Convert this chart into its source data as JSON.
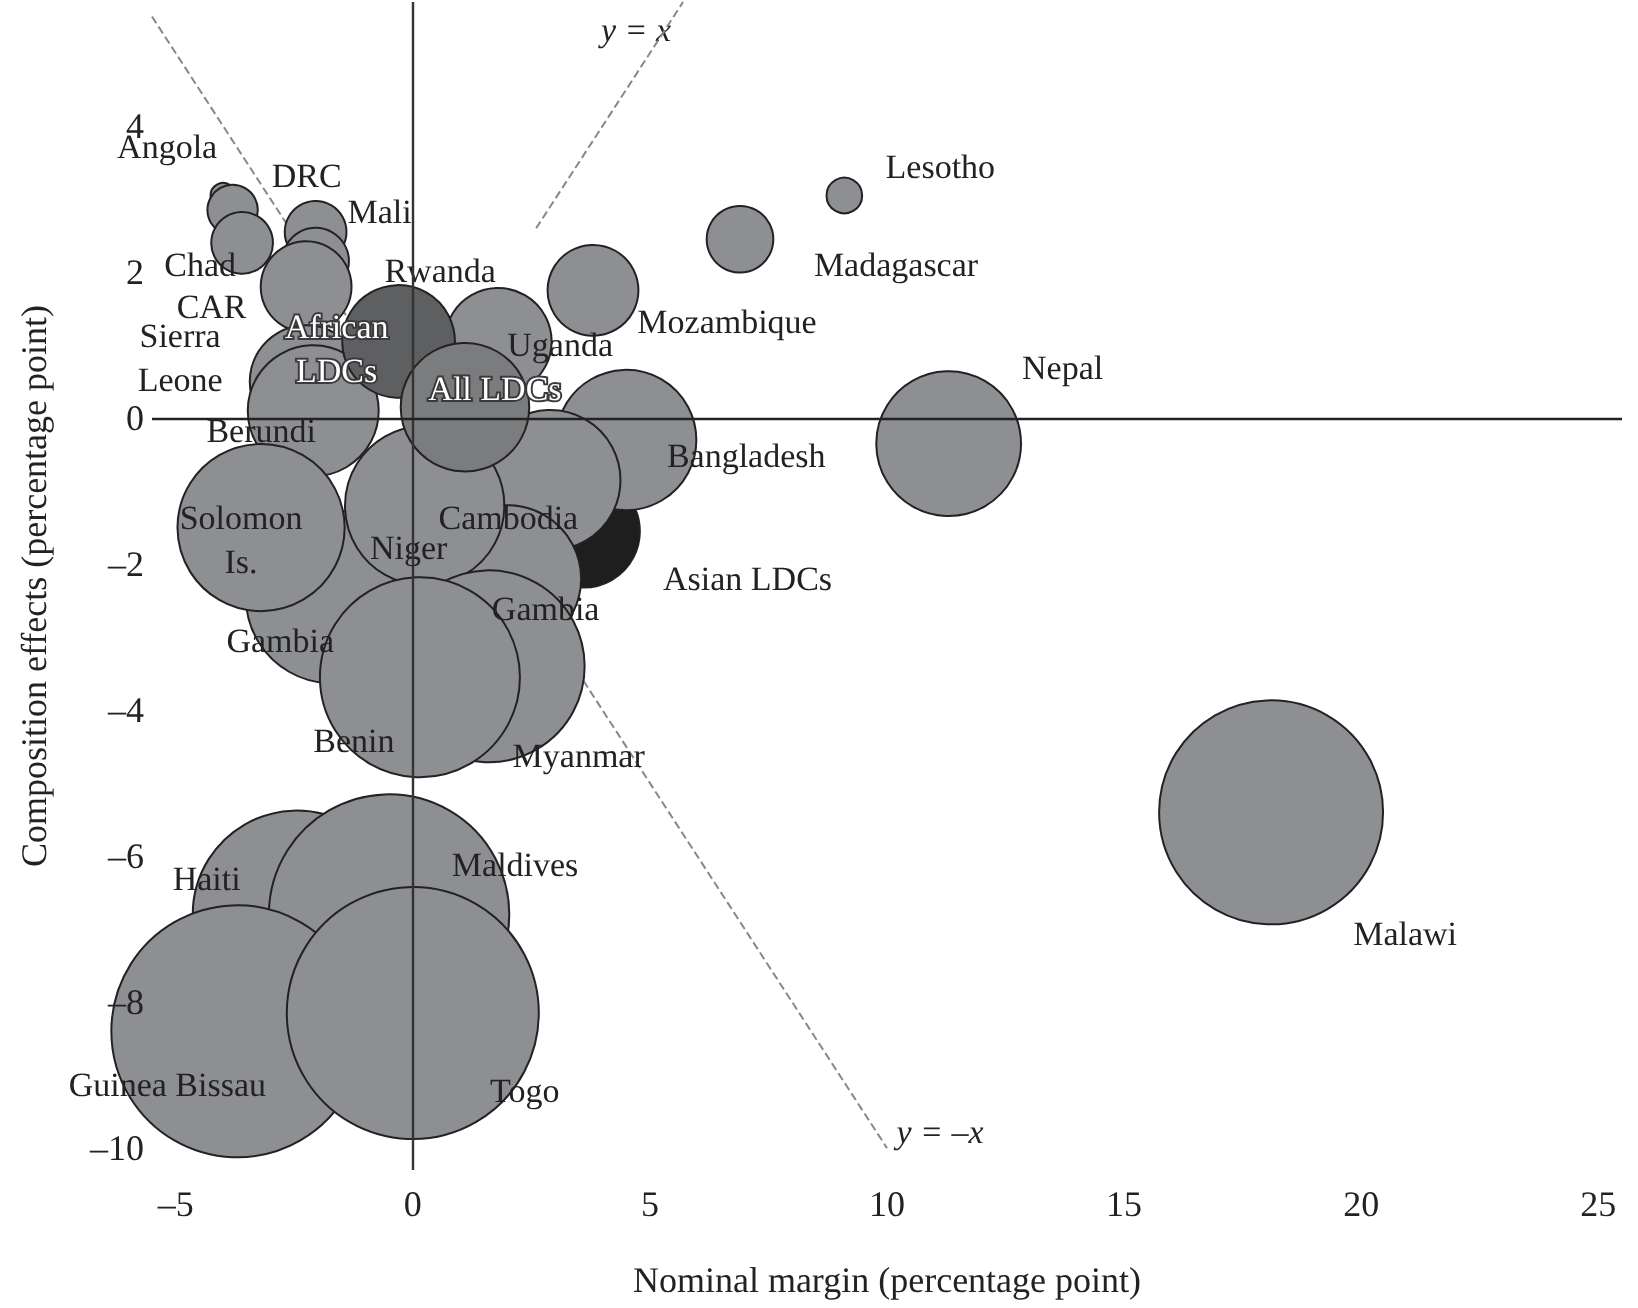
{
  "chart_data": {
    "type": "bubble",
    "xlabel": "Nominal margin (percentage point)",
    "ylabel": "Composition effects (percentage point)",
    "xlim": [
      -5.5,
      25.5
    ],
    "ylim": [
      -10.3,
      5.7
    ],
    "xticks": [
      {
        "value": -5,
        "label": "–5"
      },
      0,
      5,
      10,
      15,
      20,
      25
    ],
    "yticks": [
      {
        "value": -10,
        "label": "–10"
      },
      {
        "value": -8,
        "label": "–8"
      },
      {
        "value": -6,
        "label": "–6"
      },
      {
        "value": -4,
        "label": "–4"
      },
      {
        "value": -2,
        "label": "–2"
      },
      0,
      2,
      4
    ],
    "grid": false,
    "ref_lines": [
      {
        "axis": "x",
        "value": 0,
        "color": "#333333"
      },
      {
        "axis": "y",
        "value": 0,
        "color": "#222222"
      }
    ],
    "annotations": [
      "y = x",
      "y = –x"
    ],
    "series": [
      {
        "color": "#8e8f92",
        "x": [
          -4.0,
          -3.8,
          -3.6,
          -2.05,
          -2.05,
          -2.25,
          -2.25,
          -2.1,
          1.8,
          3.8,
          3.6,
          4.5,
          2.9,
          -1.7,
          -3.2,
          2.0,
          0.25,
          1.6,
          0.15,
          -2.45,
          -0.5,
          -3.7,
          0.0,
          9.1,
          6.9,
          11.3,
          18.1,
          -0.3,
          1.1
        ],
        "values": [
          3.05,
          2.85,
          2.4,
          2.55,
          2.15,
          1.8,
          0.5,
          0.1,
          1.05,
          1.75,
          -1.55,
          -0.3,
          -0.85,
          -2.45,
          -1.5,
          -2.2,
          -1.2,
          -3.4,
          -3.55,
          -6.8,
          -6.8,
          -8.4,
          -8.15,
          3.05,
          2.45,
          -0.35,
          -5.4,
          1.05,
          0.15
        ],
        "sizes": [
          0.01,
          0.04,
          0.06,
          0.06,
          0.07,
          0.13,
          0.2,
          0.27,
          0.18,
          0.13,
          0.2,
          0.31,
          0.31,
          0.47,
          0.44,
          0.34,
          0.4,
          0.58,
          0.63,
          0.68,
          0.91,
          1,
          1,
          0.02,
          0.07,
          0.33,
          0.79,
          0.2,
          0.26
        ],
        "colors": [
          null,
          null,
          null,
          null,
          null,
          null,
          null,
          null,
          null,
          null,
          "#1e1e1e",
          null,
          null,
          null,
          null,
          null,
          null,
          null,
          null,
          null,
          null,
          null,
          null,
          null,
          null,
          null,
          null,
          "#5e5f61",
          "#7b7c7e"
        ],
        "value_labels": [
          "Angola",
          "DRC",
          "Chad",
          "Mali",
          "CAR",
          "Rwanda",
          "Sierra\nLeone",
          "Berundi",
          "Uganda",
          "Mozambique",
          "Asian LDCs",
          "Bangladesh",
          "Cambodia",
          "Gambia",
          "Solomon\nIs.",
          "Gambia",
          "Niger",
          "Myanmar",
          "Benin",
          "Haiti",
          "Maldives",
          "Guinea Bissau",
          "Togo",
          "Lesotho",
          "Madagascar",
          "Nepal",
          "Malawi",
          "African\nLDCs",
          "All LDCs"
        ]
      },
      {
        "type": "line",
        "color": "#888888",
        "line_style": "dashed",
        "marker": "none",
        "x": [
          2.6,
          5.7
        ],
        "values": [
          2.6,
          5.7
        ]
      },
      {
        "type": "line",
        "color": "#888888",
        "line_style": "dashed",
        "marker": "none",
        "x": [
          -5.5,
          10
        ],
        "values": [
          5.5,
          -10
        ]
      }
    ]
  }
}
